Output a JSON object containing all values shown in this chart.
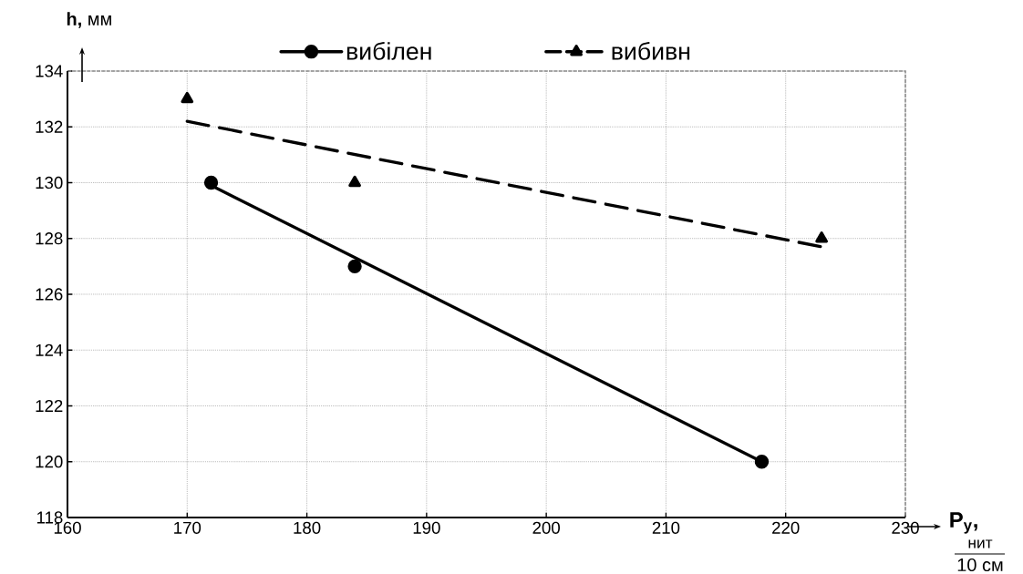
{
  "chart_data": {
    "type": "scatter",
    "xlabel": "P$_{y}$,",
    "ylabel": "**h,** мм",
    "annotations": [
      "нит",
      "10 см"
    ],
    "xlim": [
      160,
      230
    ],
    "xticks": [
      160,
      170,
      180,
      190,
      200,
      210,
      220,
      230
    ],
    "ylim": [
      118,
      134
    ],
    "yticks": [
      118,
      120,
      122,
      124,
      126,
      128,
      130,
      132,
      134
    ],
    "grid": true,
    "legend": "top",
    "series": [
      {
        "name": "вибілен",
        "marker": "circle",
        "color": "#000000",
        "x": [
          172,
          184,
          218
        ],
        "values": [
          130,
          127,
          120
        ]
      },
      {
        "name": "вибивн",
        "marker": "triangle",
        "color": "#000000",
        "x": [
          170,
          184,
          223
        ],
        "values": [
          133,
          130,
          128
        ]
      },
      {
        "type": "line",
        "marker": "none",
        "line_style": "solid",
        "color": "#000000",
        "x": [
          172,
          218
        ],
        "values": [
          129.9,
          120
        ]
      },
      {
        "type": "line",
        "marker": "none",
        "line_style": "dashed",
        "color": "#000000",
        "x": [
          170,
          223
        ],
        "values": [
          132.2,
          127.7
        ]
      }
    ]
  }
}
